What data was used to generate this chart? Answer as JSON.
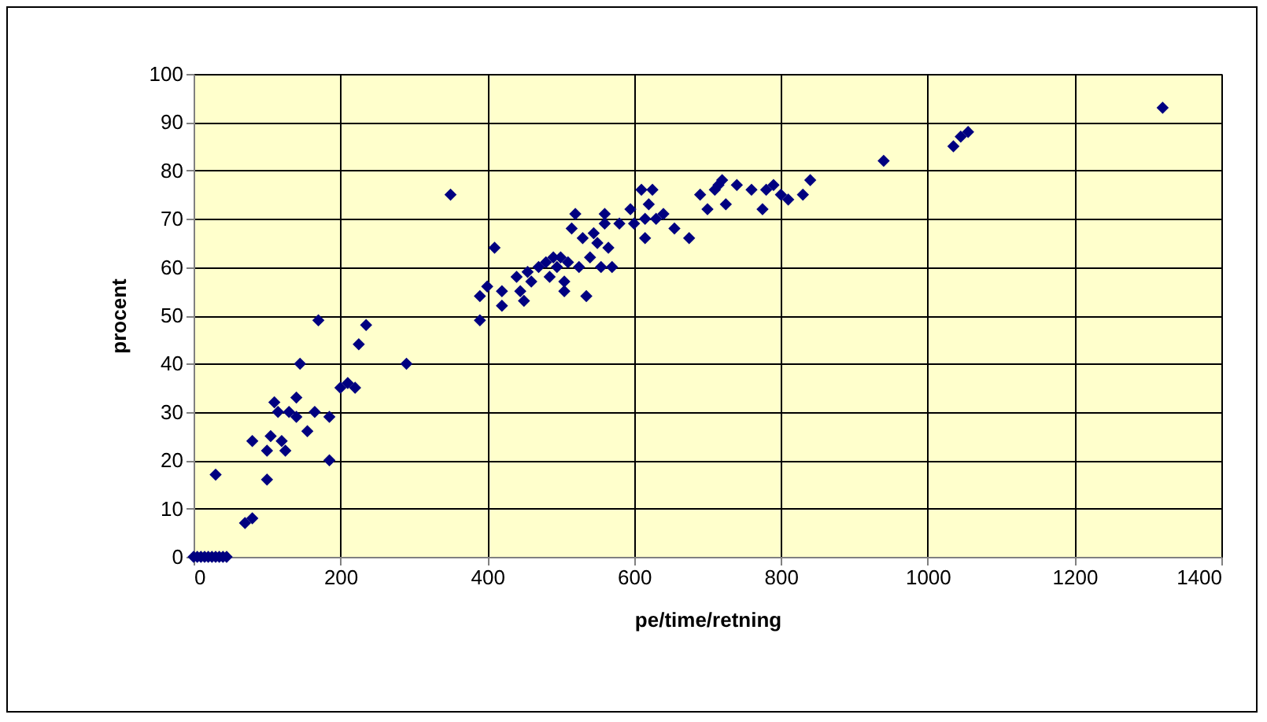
{
  "chart_data": {
    "type": "scatter",
    "xlabel": "pe/time/retning",
    "ylabel": "procent",
    "xlim": [
      0,
      1400
    ],
    "xticks": [
      0,
      200,
      400,
      600,
      800,
      1000,
      1200,
      1400
    ],
    "ylim": [
      0,
      100
    ],
    "yticks": [
      0,
      10,
      20,
      30,
      40,
      50,
      60,
      70,
      80,
      90,
      100
    ],
    "grid": true,
    "marker": "diamond",
    "x": [
      0,
      5,
      10,
      15,
      20,
      25,
      30,
      35,
      40,
      45,
      30,
      70,
      80,
      80,
      100,
      100,
      105,
      110,
      115,
      120,
      125,
      130,
      140,
      140,
      145,
      155,
      165,
      170,
      185,
      185,
      200,
      210,
      220,
      225,
      235,
      290,
      350,
      390,
      390,
      400,
      410,
      420,
      420,
      440,
      445,
      450,
      455,
      460,
      470,
      480,
      485,
      490,
      495,
      500,
      505,
      505,
      510,
      515,
      520,
      525,
      530,
      535,
      540,
      545,
      550,
      555,
      560,
      560,
      565,
      570,
      580,
      595,
      600,
      610,
      615,
      615,
      620,
      625,
      630,
      640,
      655,
      675,
      690,
      700,
      710,
      715,
      720,
      725,
      740,
      760,
      775,
      780,
      790,
      800,
      810,
      830,
      840,
      940,
      1035,
      1045,
      1055,
      1320
    ],
    "series": [
      {
        "color": "#000080",
        "values": [
          0,
          0,
          0,
          0,
          0,
          0,
          0,
          0,
          0,
          0,
          17,
          7,
          8,
          24,
          16,
          22,
          25,
          32,
          30,
          24,
          22,
          30,
          29,
          33,
          40,
          26,
          30,
          49,
          20,
          29,
          35,
          36,
          35,
          44,
          48,
          40,
          75,
          49,
          54,
          56,
          64,
          52,
          55,
          58,
          55,
          53,
          59,
          57,
          60,
          61,
          58,
          62,
          60,
          62,
          55,
          57,
          61,
          68,
          71,
          60,
          66,
          54,
          62,
          67,
          65,
          60,
          71,
          69,
          64,
          60,
          69,
          72,
          69,
          76,
          66,
          70,
          73,
          76,
          70,
          71,
          68,
          66,
          75,
          72,
          76,
          77,
          78,
          73,
          77,
          76,
          72,
          76,
          77,
          75,
          74,
          75,
          78,
          82,
          85,
          87,
          88,
          93
        ]
      }
    ]
  }
}
